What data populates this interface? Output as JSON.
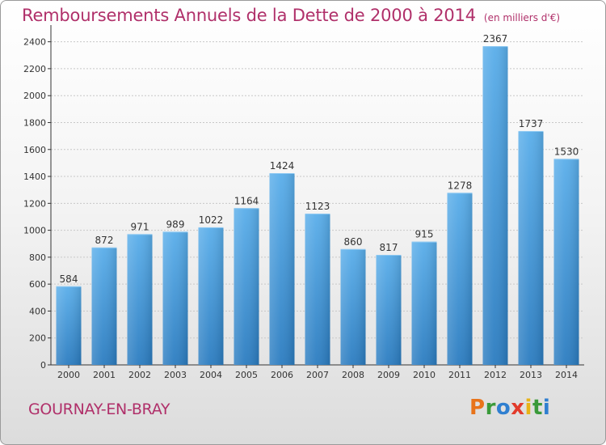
{
  "chart_data": {
    "type": "bar",
    "title": "Remboursements Annuels de la Dette de 2000 à 2014",
    "unit_label": "(en milliers d'€)",
    "categories": [
      "2000",
      "2001",
      "2002",
      "2003",
      "2004",
      "2005",
      "2006",
      "2007",
      "2008",
      "2009",
      "2010",
      "2011",
      "2012",
      "2013",
      "2014"
    ],
    "values": [
      584,
      872,
      971,
      989,
      1022,
      1164,
      1424,
      1123,
      860,
      817,
      915,
      1278,
      2367,
      1737,
      1530
    ],
    "yticks": [
      0,
      200,
      400,
      600,
      800,
      1000,
      1200,
      1400,
      1600,
      1800,
      2000,
      2200,
      2400
    ],
    "ylim": [
      0,
      2500
    ],
    "xlabel": "",
    "ylabel": "",
    "grid": true,
    "bar_color_top": "#5aaeea",
    "bar_color_bottom": "#2b7cc0"
  },
  "footer": {
    "city": "GOURNAY-EN-BRAY",
    "logo_text": "Proxiti",
    "logo_colors": [
      "#e8731a",
      "#3a9a3a",
      "#2f7fd0",
      "#e23b2b",
      "#e8b317",
      "#3a9a3a",
      "#2f7fd0"
    ]
  },
  "colors": {
    "title": "#b0306a",
    "axis": "#333333",
    "grid": "#c8c8c8"
  }
}
